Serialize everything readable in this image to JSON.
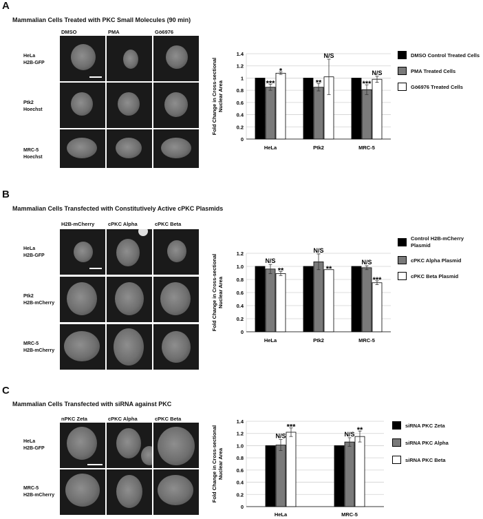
{
  "panels": [
    {
      "letter": "A",
      "title": "Mammalian Cells Treated with PKC Small Molecules (90 min)",
      "columns": [
        "DMSO",
        "PMA",
        "Gö6976"
      ],
      "rows": [
        [
          "HeLa",
          "H2B-GFP"
        ],
        [
          "Ptk2",
          "Hoechst"
        ],
        [
          "MRC-5",
          "Hoechst"
        ]
      ]
    },
    {
      "letter": "B",
      "title": "Mammalian Cells Transfected with Constitutively Active cPKC Plasmids",
      "columns": [
        "H2B-mCherry",
        "cPKC Alpha",
        "cPKC Beta"
      ],
      "rows": [
        [
          "HeLa",
          "H2B-GFP"
        ],
        [
          "Ptk2",
          "H2B-mCherry"
        ],
        [
          "MRC-5",
          "H2B-mCherry"
        ]
      ]
    },
    {
      "letter": "C",
      "title": "Mammalian Cells Transfected with siRNA against PKC",
      "columns": [
        "nPKC Zeta",
        "cPKC Alpha",
        "cPKC Beta"
      ],
      "rows": [
        [
          "HeLa",
          "H2B-GFP"
        ],
        [
          "MRC-5",
          "H2B-mCherry"
        ]
      ]
    }
  ],
  "colors": {
    "series1": "#000000",
    "series2": "#7a7a7a",
    "series3": "#ffffff",
    "grid": "#d0d0d0"
  },
  "chart_data": [
    {
      "type": "bar",
      "ylabel": "Fold Change in Cross-sectional Nuclear Area",
      "ylim": [
        0,
        1.4
      ],
      "yticks": [
        "0",
        "0.2",
        "0.4",
        "0.6",
        "0.8",
        "1",
        "1.2",
        "1.4"
      ],
      "categories": [
        "HeLa",
        "Ptk2",
        "MRC-5"
      ],
      "series": [
        {
          "name": "DMSO Control Treated Cells",
          "values": [
            1.0,
            1.0,
            1.0
          ],
          "errors": [
            0,
            0,
            0
          ],
          "sig": [
            "",
            "",
            ""
          ]
        },
        {
          "name": "PMA Treated Cells",
          "values": [
            0.85,
            0.85,
            0.81
          ],
          "errors": [
            0.05,
            0.06,
            0.08
          ],
          "sig": [
            "***",
            "**",
            "***"
          ]
        },
        {
          "name": "Gö6976 Treated Cells",
          "values": [
            1.08,
            1.02,
            0.98
          ],
          "errors": [
            0.02,
            0.29,
            0.05
          ],
          "sig": [
            "*",
            "N/S",
            "N/S"
          ]
        }
      ],
      "grid": true,
      "legend": "right"
    },
    {
      "type": "bar",
      "ylabel": "Fold Change in Cross-sectional Nuclear Area",
      "ylim": [
        0,
        1.2
      ],
      "yticks": [
        "0",
        "0.2",
        "0.4",
        "0.6",
        "0.8",
        "1.0",
        "1.2"
      ],
      "categories": [
        "HeLa",
        "Ptk2",
        "MRC-5"
      ],
      "series": [
        {
          "name": "Control H2B-mCherry Plasmid",
          "values": [
            1.0,
            1.0,
            1.0
          ],
          "errors": [
            0,
            0,
            0
          ],
          "sig": [
            "",
            "",
            ""
          ]
        },
        {
          "name": "cPKC Alpha Plasmid",
          "values": [
            0.96,
            1.07,
            0.98
          ],
          "errors": [
            0.07,
            0.12,
            0.03
          ],
          "sig": [
            "N/S",
            "N/S",
            "N/S"
          ]
        },
        {
          "name": "cPKC Beta Plasmid",
          "values": [
            0.89,
            0.95,
            0.75
          ],
          "errors": [
            0.03,
            0.0,
            0.03
          ],
          "sig": [
            "**",
            "**",
            "***"
          ]
        }
      ],
      "grid": true,
      "legend": "right"
    },
    {
      "type": "bar",
      "ylabel": "Fold Change in Cross-sectional Nuclear Area",
      "ylim": [
        0,
        1.4
      ],
      "yticks": [
        "0",
        "0.2",
        "0.4",
        "0.6",
        "0.8",
        "1.0",
        "1.2",
        "1.4"
      ],
      "categories": [
        "HeLa",
        "MRC-5"
      ],
      "series": [
        {
          "name": "siRNA PKC Zeta",
          "values": [
            1.0,
            1.0
          ],
          "errors": [
            0,
            0
          ],
          "sig": [
            "",
            ""
          ]
        },
        {
          "name": "siRNA PKC Alpha",
          "values": [
            1.01,
            1.06
          ],
          "errors": [
            0.09,
            0.07
          ],
          "sig": [
            "N/S",
            "N/S"
          ]
        },
        {
          "name": "siRNA PKC Beta",
          "values": [
            1.22,
            1.15
          ],
          "errors": [
            0.07,
            0.09
          ],
          "sig": [
            "***",
            "**"
          ]
        }
      ],
      "grid": true,
      "legend": "right"
    }
  ]
}
